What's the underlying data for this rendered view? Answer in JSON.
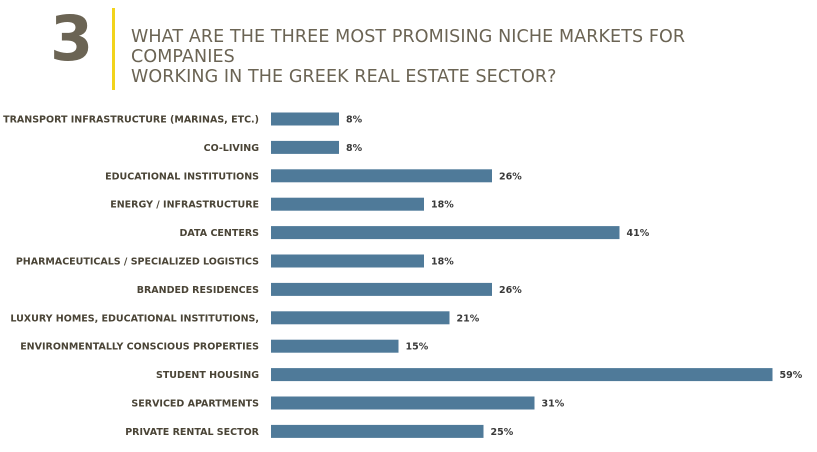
{
  "header": {
    "number": "3",
    "question_line1": "WHAT ARE THE THREE MOST PROMISING NICHE MARKETS FOR COMPANIES",
    "question_line2": "WORKING IN THE GREEK REAL ESTATE SECTOR?"
  },
  "colors": {
    "bar": "#4f7a99",
    "number": "#6b6454",
    "divider": "#f2d31b"
  },
  "chart_data": {
    "type": "bar",
    "orientation": "horizontal",
    "title": "",
    "xlabel": "",
    "ylabel": "",
    "categories": [
      "TRANSPORT INFRASTRUCTURE (MARINAS, ETC.)",
      "CO-LIVING",
      "EDUCATIONAL INSTITUTIONS",
      "ENERGY / INFRASTRUCTURE",
      "DATA CENTERS",
      "PHARMACEUTICALS / SPECIALIZED LOGISTICS",
      "BRANDED RESIDENCES",
      "LUXURY HOMES, EDUCATIONAL INSTITUTIONS,",
      "ENVIRONMENTALLY CONSCIOUS PROPERTIES",
      "STUDENT HOUSING",
      "SERVICED APARTMENTS",
      "PRIVATE RENTAL SECTOR"
    ],
    "values": [
      8,
      8,
      26,
      18,
      41,
      18,
      26,
      21,
      15,
      59,
      31,
      25
    ],
    "value_labels": [
      "8%",
      "8%",
      "26%",
      "18%",
      "41%",
      "18%",
      "26%",
      "21%",
      "15%",
      "59%",
      "31%",
      "25%"
    ],
    "unit": "%",
    "grid": false,
    "legend": "none"
  }
}
